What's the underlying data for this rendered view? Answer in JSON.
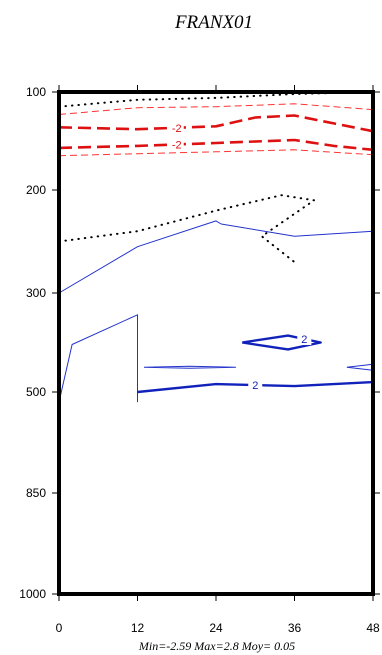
{
  "chart_data": {
    "type": "contour",
    "title": "FRANX01",
    "xlabel": "",
    "ylabel": "",
    "x_ticks": [
      "0",
      "12",
      "24",
      "36",
      "48"
    ],
    "y_ticks": [
      "100",
      "200",
      "300",
      "500",
      "850",
      "1000"
    ],
    "xlim": [
      0,
      48
    ],
    "stats_text": "Min=-2.59   Max=2.8   Moy= 0.05",
    "contour_labels": [
      "-2",
      "-2",
      "2",
      "2"
    ],
    "series": [
      {
        "kind": "zero",
        "style": "dotted",
        "color": "#000000",
        "points": [
          [
            0,
            0.15
          ],
          [
            12,
            0.08
          ],
          [
            24,
            0.06
          ],
          [
            36,
            0.02
          ],
          [
            48,
            0.0
          ]
        ]
      },
      {
        "kind": "negative-thin",
        "style": "dashed",
        "color": "#ff3333",
        "points": [
          [
            0,
            0.23
          ],
          [
            12,
            0.16
          ],
          [
            24,
            0.15
          ],
          [
            36,
            0.12
          ],
          [
            48,
            0.18
          ]
        ]
      },
      {
        "kind": "negative-thick",
        "style": "dashed",
        "color": "#dd1111",
        "label": "-2",
        "points": [
          [
            0,
            0.36
          ],
          [
            12,
            0.38
          ],
          [
            24,
            0.35
          ],
          [
            30,
            0.26
          ],
          [
            36,
            0.24
          ],
          [
            42,
            0.32
          ],
          [
            48,
            0.4
          ]
        ]
      },
      {
        "kind": "negative-thick",
        "style": "dashed",
        "color": "#dd1111",
        "label": "-2",
        "points": [
          [
            0,
            0.57
          ],
          [
            12,
            0.55
          ],
          [
            24,
            0.52
          ],
          [
            36,
            0.49
          ],
          [
            42,
            0.55
          ],
          [
            48,
            0.59
          ]
        ]
      },
      {
        "kind": "negative-thin",
        "style": "dashed",
        "color": "#ff3333",
        "points": [
          [
            0,
            0.65
          ],
          [
            12,
            0.63
          ],
          [
            24,
            0.61
          ],
          [
            36,
            0.59
          ],
          [
            48,
            0.64
          ]
        ]
      },
      {
        "kind": "zero",
        "style": "dotted",
        "color": "#000000",
        "points": [
          [
            0,
            1.5
          ],
          [
            12,
            1.4
          ],
          [
            24,
            1.2
          ],
          [
            34,
            1.05
          ],
          [
            39,
            1.1
          ],
          [
            31,
            1.45
          ],
          [
            36,
            1.7
          ]
        ]
      },
      {
        "kind": "positive-thin",
        "style": "solid",
        "color": "#2233cc",
        "points": [
          [
            0,
            2.0
          ],
          [
            12,
            1.55
          ],
          [
            24,
            1.3
          ],
          [
            24.8,
            1.33
          ],
          [
            36,
            1.45
          ],
          [
            48,
            1.4
          ]
        ]
      },
      {
        "kind": "positive-thin",
        "style": "solid",
        "color": "#2233cc",
        "points": [
          [
            0,
            3.1
          ],
          [
            2,
            2.52
          ],
          [
            12,
            2.22
          ],
          [
            12,
            3.1
          ]
        ]
      },
      {
        "kind": "positive-thick",
        "style": "solid",
        "color": "#1122bb",
        "label": "2",
        "points": [
          [
            28,
            2.5
          ],
          [
            35,
            2.43
          ],
          [
            40,
            2.5
          ],
          [
            35,
            2.57
          ],
          [
            28,
            2.5
          ]
        ]
      },
      {
        "kind": "positive-thin",
        "style": "solid",
        "color": "#2233cc",
        "points": [
          [
            13,
            2.75
          ],
          [
            20,
            2.74
          ],
          [
            27,
            2.75
          ],
          [
            20,
            2.76
          ],
          [
            13,
            2.75
          ]
        ]
      },
      {
        "kind": "positive-thin",
        "style": "solid",
        "color": "#2233cc",
        "points": [
          [
            44,
            2.75
          ],
          [
            48,
            2.72
          ],
          [
            48,
            2.78
          ],
          [
            44,
            2.75
          ]
        ]
      },
      {
        "kind": "positive-thick",
        "style": "solid",
        "color": "#1122bb",
        "label": "2",
        "points": [
          [
            12,
            3.0
          ],
          [
            24,
            2.92
          ],
          [
            36,
            2.94
          ],
          [
            48,
            2.9
          ]
        ]
      }
    ]
  }
}
